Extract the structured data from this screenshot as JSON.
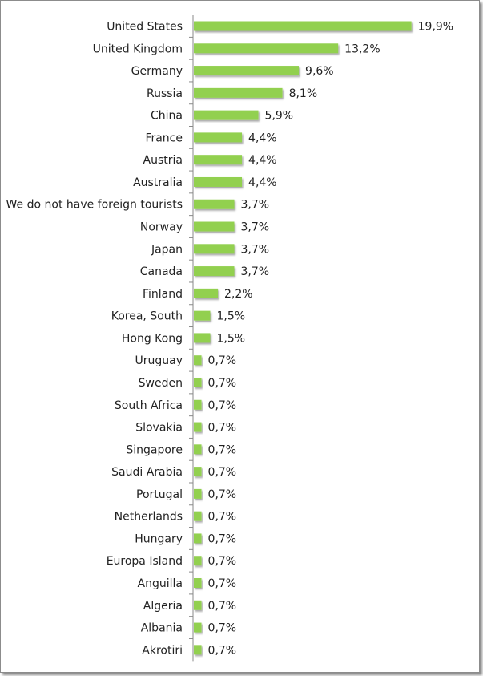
{
  "chart_data": {
    "type": "bar",
    "orientation": "horizontal",
    "title": "",
    "xlabel": "",
    "ylabel": "",
    "value_suffix": "%",
    "decimal_separator": ",",
    "bar_color": "#92d050",
    "categories": [
      "United States",
      "United Kingdom",
      "Germany",
      "Russia",
      "China",
      "France",
      "Austria",
      "Australia",
      "We do not have foreign tourists",
      "Norway",
      "Japan",
      "Canada",
      "Finland",
      "Korea, South",
      "Hong Kong",
      "Uruguay",
      "Sweden",
      "South Africa",
      "Slovakia",
      "Singapore",
      "Saudi Arabia",
      "Portugal",
      "Netherlands",
      "Hungary",
      "Europa Island",
      "Anguilla",
      "Algeria",
      "Albania",
      "Akrotiri"
    ],
    "values": [
      19.9,
      13.2,
      9.6,
      8.1,
      5.9,
      4.4,
      4.4,
      4.4,
      3.7,
      3.7,
      3.7,
      3.7,
      2.2,
      1.5,
      1.5,
      0.7,
      0.7,
      0.7,
      0.7,
      0.7,
      0.7,
      0.7,
      0.7,
      0.7,
      0.7,
      0.7,
      0.7,
      0.7,
      0.7
    ],
    "value_labels": [
      "19,9%",
      "13,2%",
      "9,6%",
      "8,1%",
      "5,9%",
      "4,4%",
      "4,4%",
      "4,4%",
      "3,7%",
      "3,7%",
      "3,7%",
      "3,7%",
      "2,2%",
      "1,5%",
      "1,5%",
      "0,7%",
      "0,7%",
      "0,7%",
      "0,7%",
      "0,7%",
      "0,7%",
      "0,7%",
      "0,7%",
      "0,7%",
      "0,7%",
      "0,7%",
      "0,7%",
      "0,7%",
      "0,7%"
    ],
    "grid": false,
    "legend": "none"
  }
}
